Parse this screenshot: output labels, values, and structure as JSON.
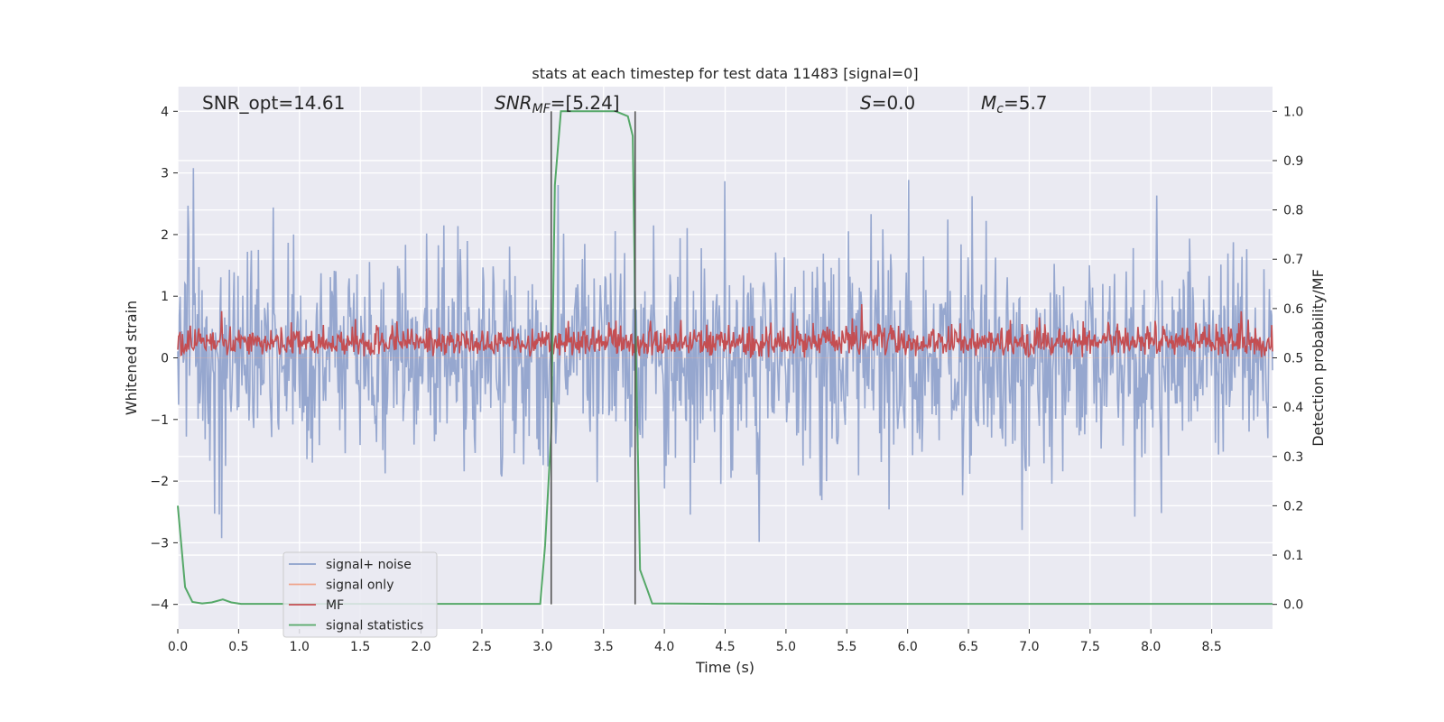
{
  "chart_data": {
    "type": "line",
    "title": "stats at each timestep for test data 11483 [signal=0]",
    "xlabel": "Time (s)",
    "ylabel_left": "Whitened strain",
    "ylabel_right": "Detection probability/MF",
    "xlim": [
      0,
      9.0
    ],
    "ylim_left": [
      -4.4,
      4.4
    ],
    "ylim_right": [
      -0.05,
      1.05
    ],
    "xticks": [
      0.0,
      0.5,
      1.0,
      1.5,
      2.0,
      2.5,
      3.0,
      3.5,
      4.0,
      4.5,
      5.0,
      5.5,
      6.0,
      6.5,
      7.0,
      7.5,
      8.0,
      8.5
    ],
    "xtick_labels": [
      "0.0",
      "0.5",
      "1.0",
      "1.5",
      "2.0",
      "2.5",
      "3.0",
      "3.5",
      "4.0",
      "4.5",
      "5.0",
      "5.5",
      "6.0",
      "6.5",
      "7.0",
      "7.5",
      "8.0",
      "8.5"
    ],
    "yticks_left": [
      4,
      3,
      2,
      1,
      0,
      -1,
      -2,
      -3,
      -4
    ],
    "ytick_labels_left": [
      "4",
      "3",
      "2",
      "1",
      "0",
      "−1",
      "−2",
      "−3",
      "−4"
    ],
    "yticks_right": [
      1.0,
      0.9,
      0.8,
      0.7,
      0.6,
      0.5,
      0.4,
      0.3,
      0.2,
      0.1,
      0.0
    ],
    "ytick_labels_right": [
      "1.0",
      "0.9",
      "0.8",
      "0.7",
      "0.6",
      "0.5",
      "0.4",
      "0.3",
      "0.2",
      "0.1",
      "0.0"
    ],
    "annotations": {
      "snr_opt": "SNR_opt=14.61",
      "snr_mf_main": "SNR",
      "snr_mf_sub": "MF",
      "snr_mf_value": "=[5.24]",
      "s_main": "S",
      "s_value": "=0.0",
      "mc_main": "M",
      "mc_sub": "c",
      "mc_value": "=5.7"
    },
    "vertical_markers": [
      3.07,
      3.76
    ],
    "noise": {
      "sample_count": 1400,
      "envelope_pos": 1.75,
      "envelope_neg": -1.6,
      "max": 4.0,
      "min": -3.35
    },
    "mf": {
      "sample_count": 1400,
      "typical_min": 0.5,
      "typical_max": 0.62,
      "peak_right": 0.65
    },
    "series": [
      {
        "name": "signal+ noise",
        "color": "#8da0cb",
        "axis": "left"
      },
      {
        "name": "signal only",
        "color": "#f0a58c",
        "axis": "left"
      },
      {
        "name": "MF",
        "color": "#c44e52",
        "axis": "right"
      },
      {
        "name": "signal statistics",
        "color": "#55a868",
        "axis": "right",
        "x": [
          0.0,
          0.06,
          0.12,
          0.2,
          0.28,
          0.37,
          0.44,
          0.52,
          1.0,
          2.0,
          2.98,
          3.02,
          3.07,
          3.1,
          3.15,
          3.6,
          3.7,
          3.74,
          3.76,
          3.8,
          3.86,
          3.9,
          4.5,
          9.0
        ],
        "values": [
          0.2,
          0.035,
          0.005,
          0.002,
          0.004,
          0.01,
          0.004,
          0.001,
          0.001,
          0.001,
          0.001,
          0.12,
          0.35,
          0.85,
          1.0,
          1.0,
          0.99,
          0.95,
          0.6,
          0.07,
          0.03,
          0.002,
          0.001,
          0.001
        ]
      }
    ],
    "legend_position": "lower-left",
    "colors": {
      "plot_bg": "#eaeaf2",
      "grid": "#ffffff",
      "marker": "#555555"
    }
  }
}
